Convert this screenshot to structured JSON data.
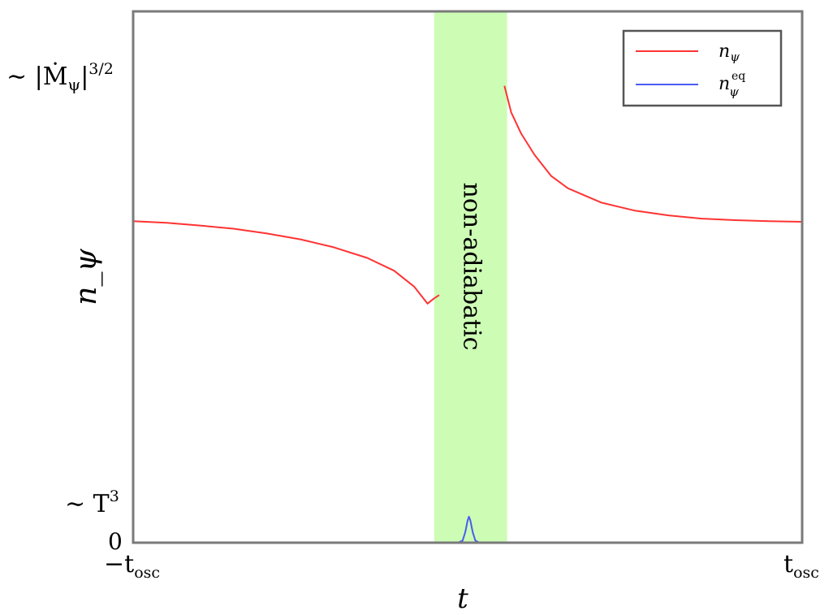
{
  "chart_data": {
    "type": "line",
    "title": "",
    "xlabel": "t",
    "ylabel": "n_ψ",
    "x_ticks": [
      {
        "main": "−t",
        "sub": "osc"
      },
      {
        "main": "t",
        "sub": "osc"
      }
    ],
    "y_ticks": [
      {
        "label": "0"
      },
      {
        "main": "∼ T",
        "sup": "3"
      },
      {
        "main": "∼ |Ṁ",
        "sub": "ψ",
        "bar": "|",
        "sup": "3/2"
      }
    ],
    "shaded_region": {
      "label": "non-adiabatic",
      "color": "#cdfdb5",
      "x_range": [
        -0.1,
        0.118
      ]
    },
    "xlim": [
      -1,
      1
    ],
    "ylim": [
      0,
      1
    ],
    "grid": false,
    "legend": {
      "position": "top-right",
      "entries": [
        {
          "main": "n",
          "sub": "ψ",
          "sup": "",
          "color": "#ff3333"
        },
        {
          "main": "n",
          "sub": "ψ",
          "sup": "eq",
          "color": "#4a5cf0"
        }
      ]
    },
    "series": [
      {
        "color": "#ff3333",
        "segments": [
          [
            [
              -1.0,
              0.605
            ],
            [
              -0.9,
              0.602
            ],
            [
              -0.8,
              0.597
            ],
            [
              -0.7,
              0.591
            ],
            [
              -0.6,
              0.582
            ],
            [
              -0.5,
              0.571
            ],
            [
              -0.4,
              0.556
            ],
            [
              -0.3,
              0.536
            ],
            [
              -0.22,
              0.512
            ],
            [
              -0.16,
              0.482
            ],
            [
              -0.12,
              0.45
            ],
            [
              -0.1,
              0.46
            ],
            [
              -0.085,
              0.466
            ]
          ],
          [
            [
              0.11,
              0.86
            ],
            [
              0.13,
              0.81
            ],
            [
              0.16,
              0.77
            ],
            [
              0.2,
              0.73
            ],
            [
              0.25,
              0.69
            ],
            [
              0.3,
              0.667
            ],
            [
              0.4,
              0.64
            ],
            [
              0.5,
              0.625
            ],
            [
              0.6,
              0.616
            ],
            [
              0.7,
              0.61
            ],
            [
              0.8,
              0.607
            ],
            [
              0.9,
              0.605
            ],
            [
              1.0,
              0.604
            ]
          ]
        ]
      },
      {
        "color": "#4a5cf0",
        "segments": [
          [
            [
              -0.1,
              0.0
            ],
            [
              -0.03,
              0.0
            ],
            [
              -0.015,
              0.004
            ],
            [
              -0.007,
              0.02
            ],
            [
              0.0,
              0.042
            ],
            [
              0.004,
              0.049
            ],
            [
              0.008,
              0.042
            ],
            [
              0.015,
              0.02
            ],
            [
              0.023,
              0.004
            ],
            [
              0.035,
              0.0
            ],
            [
              0.05,
              0.0
            ]
          ]
        ]
      }
    ]
  }
}
